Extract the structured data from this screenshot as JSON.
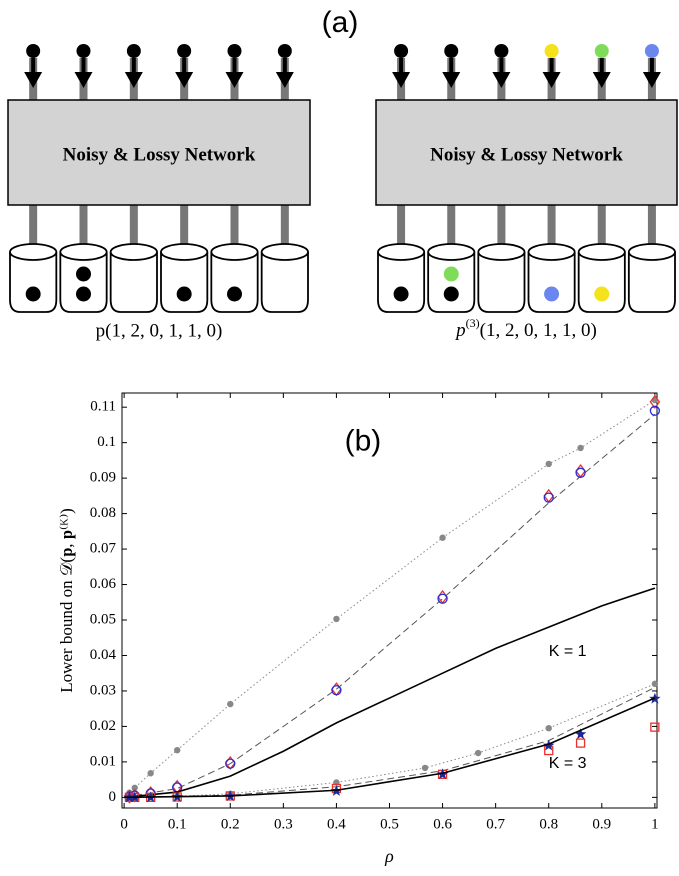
{
  "diagram": {
    "label": "(a)",
    "networks": [
      {
        "title": "Noisy & Lossy Network",
        "inputs": [
          "#000000",
          "#000000",
          "#000000",
          "#000000",
          "#000000",
          "#000000"
        ],
        "cylinders": [
          [
            "#000000"
          ],
          [
            "#000000",
            "#000000"
          ],
          [],
          [
            "#000000"
          ],
          [
            "#000000"
          ],
          []
        ],
        "caption": {
          "text": "p(1, 2, 0, 1, 1, 0)"
        }
      },
      {
        "title": "Noisy & Lossy Network",
        "inputs": [
          "#000000",
          "#000000",
          "#000000",
          "#f3e21c",
          "#7fdc5a",
          "#6b86ee"
        ],
        "cylinders": [
          [
            "#000000"
          ],
          [
            "#000000",
            "#7fdc5a"
          ],
          [],
          [
            "#6b86ee"
          ],
          [
            "#f3e21c"
          ],
          []
        ],
        "caption": {
          "base": "p",
          "sup": "(3)",
          "args": "(1, 2, 0, 1, 1, 0)"
        }
      }
    ]
  },
  "chart_data": {
    "type": "line",
    "xlabel": "ρ",
    "ylabel": "Lower bound on 𝒟(𝐩, 𝐩⁽ᴷ⁾)",
    "xlim": [
      -0.004,
      1.004
    ],
    "ylim": [
      -0.003,
      0.114
    ],
    "xticks": [
      0,
      0.1,
      0.2,
      0.3,
      0.4,
      0.5,
      0.6,
      0.7,
      0.8,
      0.9,
      1
    ],
    "yticks": [
      0,
      0.01,
      0.02,
      0.03,
      0.04,
      0.05,
      0.06,
      0.07,
      0.08,
      0.09,
      0.1,
      0.11
    ],
    "annotations": [
      {
        "text": "(b)",
        "x": 0.45,
        "y": 0.1
      },
      {
        "text": "K = 1",
        "x": 0.8,
        "y": 0.041
      },
      {
        "text": "K = 3",
        "x": 0.8,
        "y": 0.0095
      }
    ],
    "series": [
      {
        "color": "#888888",
        "line": "dotted",
        "marker": "dot",
        "x": [
          0.01,
          0.02,
          0.05,
          0.1,
          0.2,
          0.4,
          0.6,
          0.8,
          0.86,
          1
        ],
        "values": [
          0.0013,
          0.0027,
          0.0068,
          0.0133,
          0.0263,
          0.0503,
          0.0732,
          0.094,
          0.0985,
          0.112
        ]
      },
      {
        "color": "#555555",
        "line": "dashed",
        "x": [
          0,
          0.1,
          0.2,
          0.4,
          0.6,
          0.8,
          1
        ],
        "values": [
          0,
          0.0025,
          0.0095,
          0.0305,
          0.056,
          0.083,
          0.108
        ]
      },
      {
        "color": "#e8322b",
        "marker": "diamond",
        "x": [
          0.01,
          0.02,
          0.05,
          0.1,
          0.2,
          0.4,
          0.6,
          0.8,
          0.86,
          1
        ],
        "values": [
          0.0002,
          0.0005,
          0.0012,
          0.003,
          0.0097,
          0.0305,
          0.0565,
          0.085,
          0.092,
          0.1115
        ]
      },
      {
        "color": "#2a2ad6",
        "marker": "circle",
        "x": [
          0.01,
          0.02,
          0.05,
          0.1,
          0.2,
          0.4,
          0.6,
          0.8,
          0.86,
          1
        ],
        "values": [
          0.0002,
          0.0005,
          0.0011,
          0.0028,
          0.0095,
          0.0302,
          0.056,
          0.0845,
          0.0915,
          0.109
        ]
      },
      {
        "color": "#000000",
        "line": "solid",
        "x": [
          0,
          0.1,
          0.2,
          0.3,
          0.4,
          0.5,
          0.6,
          0.7,
          0.8,
          0.9,
          1
        ],
        "values": [
          0,
          0.0015,
          0.006,
          0.013,
          0.021,
          0.028,
          0.035,
          0.042,
          0.048,
          0.054,
          0.059
        ]
      },
      {
        "color": "#888888",
        "line": "dotted",
        "marker": "dot",
        "x": [
          0.01,
          0.02,
          0.05,
          0.1,
          0.2,
          0.4,
          0.567,
          0.667,
          0.8,
          1
        ],
        "values": [
          0,
          0,
          0.0001,
          0.0003,
          0.001,
          0.0042,
          0.0083,
          0.0125,
          0.0195,
          0.032
        ]
      },
      {
        "color": "#555555",
        "line": "dashed",
        "x": [
          0,
          0.2,
          0.4,
          0.6,
          0.8,
          1
        ],
        "values": [
          0,
          0.0006,
          0.003,
          0.0075,
          0.016,
          0.031
        ]
      },
      {
        "color": "#e8322b",
        "marker": "square",
        "x": [
          0.01,
          0.02,
          0.05,
          0.1,
          0.2,
          0.4,
          0.6,
          0.8,
          0.86,
          1
        ],
        "values": [
          0,
          0,
          0,
          0.0001,
          0.0004,
          0.0025,
          0.0065,
          0.0132,
          0.0153,
          0.0198
        ]
      },
      {
        "color": "#1a2a9a",
        "marker": "star",
        "x": [
          0.01,
          0.02,
          0.05,
          0.1,
          0.2,
          0.4,
          0.6,
          0.8,
          0.86,
          1
        ],
        "values": [
          0,
          0,
          0,
          0.0001,
          0.0003,
          0.0018,
          0.0065,
          0.0146,
          0.0178,
          0.0278
        ]
      },
      {
        "color": "#000000",
        "line": "solid",
        "x": [
          0,
          0.2,
          0.4,
          0.6,
          0.8,
          1
        ],
        "values": [
          0,
          0.0004,
          0.002,
          0.0068,
          0.015,
          0.028
        ]
      }
    ]
  }
}
